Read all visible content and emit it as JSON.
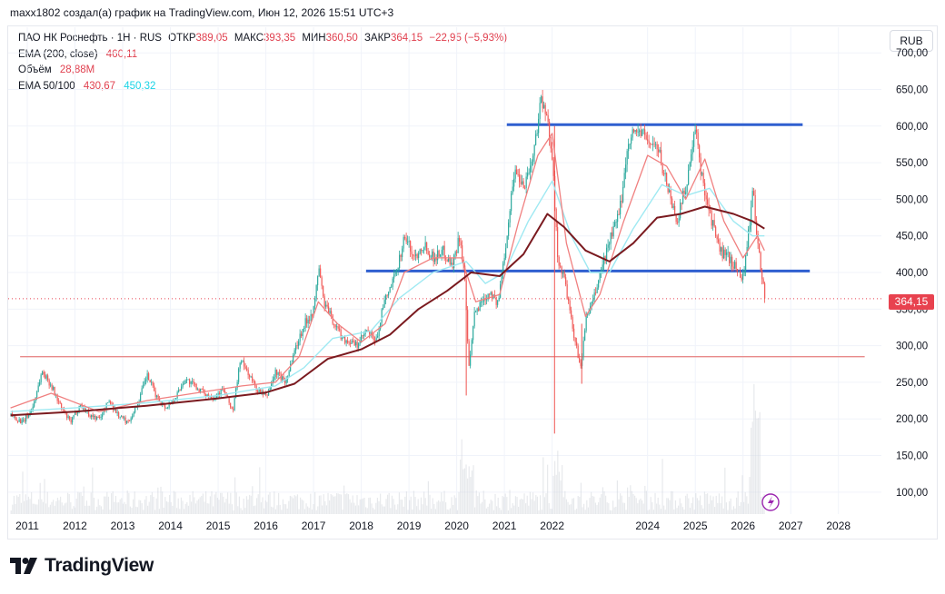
{
  "header": {
    "credit": "maxx1802 создал(а) график на TradingView.com, Июн 12, 2026 15:51 UTC+3"
  },
  "legend": {
    "symbol": "ПАО НК Роснефть · 1Н · RUS",
    "open_label": "ОТКР",
    "open_value": "389,05",
    "high_label": "МАКС",
    "high_value": "393,35",
    "low_label": "МИН",
    "low_value": "360,50",
    "close_label": "ЗАКР",
    "close_value": "364,15",
    "change": "−22,95 (−5,93%)",
    "ema200_label": "EMA (200, close)",
    "ema200_value": "460,11",
    "volume_label": "Объём",
    "volume_value": "28,88M",
    "ema50_100_label": "EMA 50/100",
    "ema50_value": "430,67",
    "ema100_value": "450,32"
  },
  "currency": "RUB",
  "last_price_label": "364,15",
  "footer": {
    "brand": "TradingView"
  },
  "colors": {
    "up": "#26a69a",
    "down": "#ef5350",
    "ema50": "#f08080",
    "ema100": "#9fe9f2",
    "ema200": "#7a1a1f",
    "levels": "#2f5fd0",
    "support": "#e88a8a",
    "badge": "#e8424f"
  },
  "chart_data": {
    "type": "candlestick",
    "title": "ПАО НК Роснефть · 1Н · RUS",
    "x_ticks": [
      "2011",
      "2012",
      "2013",
      "2014",
      "2015",
      "2016",
      "2017",
      "2018",
      "2019",
      "2020",
      "2021",
      "2022",
      "2024",
      "2025",
      "2026",
      "2027",
      "2028"
    ],
    "y_ticks": [
      "100,00",
      "150,00",
      "200,00",
      "250,00",
      "300,00",
      "350,00",
      "400,00",
      "450,00",
      "500,00",
      "550,00",
      "600,00",
      "650,00",
      "700,00"
    ],
    "ylim": [
      70,
      735
    ],
    "xlim": [
      2010.6,
      2028.9
    ],
    "price_path": [
      [
        2010.65,
        205
      ],
      [
        2010.9,
        195
      ],
      [
        2011.1,
        215
      ],
      [
        2011.3,
        265
      ],
      [
        2011.5,
        245
      ],
      [
        2011.7,
        215
      ],
      [
        2011.9,
        195
      ],
      [
        2012.1,
        220
      ],
      [
        2012.3,
        205
      ],
      [
        2012.5,
        200
      ],
      [
        2012.7,
        225
      ],
      [
        2012.9,
        205
      ],
      [
        2013.1,
        195
      ],
      [
        2013.3,
        220
      ],
      [
        2013.5,
        260
      ],
      [
        2013.7,
        230
      ],
      [
        2013.9,
        215
      ],
      [
        2014.1,
        230
      ],
      [
        2014.3,
        255
      ],
      [
        2014.5,
        245
      ],
      [
        2014.7,
        235
      ],
      [
        2014.9,
        230
      ],
      [
        2015.1,
        240
      ],
      [
        2015.3,
        210
      ],
      [
        2015.45,
        280
      ],
      [
        2015.6,
        265
      ],
      [
        2015.8,
        240
      ],
      [
        2016.0,
        230
      ],
      [
        2016.2,
        265
      ],
      [
        2016.4,
        250
      ],
      [
        2016.6,
        295
      ],
      [
        2016.8,
        330
      ],
      [
        2017.0,
        350
      ],
      [
        2017.1,
        410
      ],
      [
        2017.2,
        360
      ],
      [
        2017.35,
        340
      ],
      [
        2017.6,
        310
      ],
      [
        2017.9,
        300
      ],
      [
        2018.1,
        320
      ],
      [
        2018.3,
        305
      ],
      [
        2018.45,
        355
      ],
      [
        2018.7,
        395
      ],
      [
        2018.9,
        450
      ],
      [
        2019.1,
        420
      ],
      [
        2019.3,
        440
      ],
      [
        2019.5,
        420
      ],
      [
        2019.7,
        430
      ],
      [
        2019.9,
        410
      ],
      [
        2020.05,
        450
      ],
      [
        2020.15,
        400
      ],
      [
        2020.25,
        265
      ],
      [
        2020.35,
        340
      ],
      [
        2020.5,
        360
      ],
      [
        2020.7,
        375
      ],
      [
        2020.85,
        355
      ],
      [
        2021.0,
        430
      ],
      [
        2021.2,
        540
      ],
      [
        2021.4,
        520
      ],
      [
        2021.6,
        560
      ],
      [
        2021.75,
        640
      ],
      [
        2021.9,
        600
      ],
      [
        2022.0,
        560
      ],
      [
        2022.1,
        420
      ],
      [
        2022.25,
        390
      ],
      [
        2022.45,
        310
      ],
      [
        2022.6,
        270
      ],
      [
        2022.7,
        340
      ],
      [
        2022.85,
        360
      ],
      [
        2023.0,
        400
      ],
      [
        2023.2,
        445
      ],
      [
        2023.4,
        480
      ],
      [
        2023.6,
        585
      ],
      [
        2023.8,
        595
      ],
      [
        2024.0,
        580
      ],
      [
        2024.2,
        570
      ],
      [
        2024.4,
        520
      ],
      [
        2024.6,
        470
      ],
      [
        2024.8,
        520
      ],
      [
        2025.0,
        595
      ],
      [
        2025.1,
        540
      ],
      [
        2025.3,
        480
      ],
      [
        2025.5,
        430
      ],
      [
        2025.7,
        420
      ],
      [
        2025.9,
        400
      ],
      [
        2026.0,
        395
      ],
      [
        2026.2,
        510
      ],
      [
        2026.3,
        440
      ],
      [
        2026.45,
        364
      ]
    ],
    "ema50": [
      [
        2010.65,
        215
      ],
      [
        2011.5,
        235
      ],
      [
        2012.5,
        210
      ],
      [
        2013.5,
        225
      ],
      [
        2014.5,
        235
      ],
      [
        2015.5,
        245
      ],
      [
        2016.2,
        250
      ],
      [
        2016.7,
        285
      ],
      [
        2017.1,
        360
      ],
      [
        2017.5,
        330
      ],
      [
        2018.0,
        305
      ],
      [
        2018.5,
        330
      ],
      [
        2018.9,
        400
      ],
      [
        2019.5,
        420
      ],
      [
        2020.1,
        420
      ],
      [
        2020.4,
        360
      ],
      [
        2020.9,
        370
      ],
      [
        2021.3,
        470
      ],
      [
        2021.7,
        560
      ],
      [
        2022.0,
        590
      ],
      [
        2022.3,
        440
      ],
      [
        2022.7,
        340
      ],
      [
        2023.0,
        370
      ],
      [
        2023.5,
        470
      ],
      [
        2024.0,
        560
      ],
      [
        2024.4,
        545
      ],
      [
        2024.8,
        500
      ],
      [
        2025.2,
        555
      ],
      [
        2025.6,
        470
      ],
      [
        2026.0,
        420
      ],
      [
        2026.3,
        450
      ],
      [
        2026.45,
        430
      ]
    ],
    "ema100": [
      [
        2010.65,
        210
      ],
      [
        2012.0,
        215
      ],
      [
        2013.5,
        222
      ],
      [
        2015.0,
        232
      ],
      [
        2016.2,
        245
      ],
      [
        2016.8,
        270
      ],
      [
        2017.4,
        310
      ],
      [
        2018.2,
        320
      ],
      [
        2018.8,
        365
      ],
      [
        2019.5,
        400
      ],
      [
        2020.2,
        415
      ],
      [
        2020.6,
        385
      ],
      [
        2021.0,
        400
      ],
      [
        2021.5,
        470
      ],
      [
        2022.0,
        525
      ],
      [
        2022.4,
        450
      ],
      [
        2022.8,
        400
      ],
      [
        2023.2,
        400
      ],
      [
        2023.7,
        460
      ],
      [
        2024.3,
        520
      ],
      [
        2024.8,
        505
      ],
      [
        2025.3,
        515
      ],
      [
        2025.8,
        470
      ],
      [
        2026.2,
        450
      ],
      [
        2026.45,
        450
      ]
    ],
    "ema200": [
      [
        2010.65,
        205
      ],
      [
        2012.0,
        210
      ],
      [
        2013.5,
        218
      ],
      [
        2015.0,
        228
      ],
      [
        2016.0,
        236
      ],
      [
        2016.6,
        248
      ],
      [
        2017.3,
        282
      ],
      [
        2018.0,
        295
      ],
      [
        2018.6,
        315
      ],
      [
        2019.2,
        350
      ],
      [
        2019.8,
        375
      ],
      [
        2020.3,
        400
      ],
      [
        2020.9,
        395
      ],
      [
        2021.4,
        425
      ],
      [
        2021.9,
        480
      ],
      [
        2022.25,
        462
      ],
      [
        2022.7,
        430
      ],
      [
        2023.2,
        415
      ],
      [
        2023.7,
        440
      ],
      [
        2024.2,
        475
      ],
      [
        2024.7,
        480
      ],
      [
        2025.2,
        490
      ],
      [
        2025.8,
        480
      ],
      [
        2026.2,
        470
      ],
      [
        2026.45,
        460
      ]
    ],
    "resistance_level": {
      "value": 602,
      "x_start": 2021.05,
      "x_end": 2027.25
    },
    "support_level_blue": {
      "value": 402,
      "x_start": 2018.1,
      "x_end": 2027.4
    },
    "support_level_red": {
      "value": 285,
      "x_start": 2010.85,
      "x_end": 2028.55
    },
    "last_price": 364.15
  }
}
